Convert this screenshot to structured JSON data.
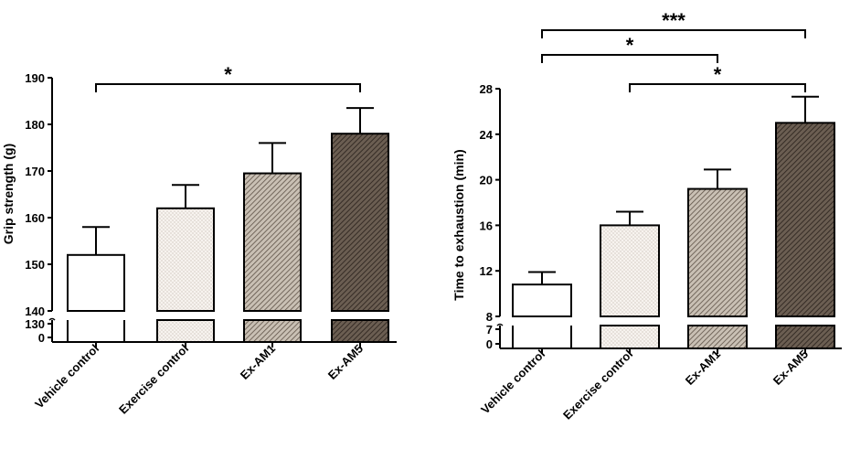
{
  "chart_data": [
    {
      "type": "bar",
      "ylabel": "Grip strength (g)",
      "xlabel": "",
      "categories": [
        "Vehicle control",
        "Exercise control",
        "Ex-AM1",
        "Ex-AM5"
      ],
      "values": [
        152,
        162,
        169.5,
        178
      ],
      "errors": [
        6,
        5,
        6.5,
        5.5
      ],
      "ylim": [
        140,
        190
      ],
      "yticks": [
        "140",
        "150",
        "160",
        "170",
        "180",
        "190"
      ],
      "broken_axis_ticks": [
        "130",
        "0"
      ],
      "significance": [
        {
          "from": "Vehicle control",
          "to": "Ex-AM5",
          "label": "*"
        }
      ],
      "fills": [
        "white",
        "light-dots",
        "medium-hatch",
        "dark-hatch"
      ]
    },
    {
      "type": "bar",
      "ylabel": "Time to exhaustion (min)",
      "xlabel": "",
      "categories": [
        "Vehicle control",
        "Exercise control",
        "Ex-AM1",
        "Ex-AM5"
      ],
      "values": [
        10.8,
        16,
        19.2,
        25
      ],
      "errors": [
        1.1,
        1.2,
        1.7,
        2.3
      ],
      "ylim": [
        8,
        28
      ],
      "yticks": [
        "8",
        "12",
        "16",
        "20",
        "24",
        "28"
      ],
      "broken_axis_ticks": [
        "7",
        "0"
      ],
      "significance": [
        {
          "from": "Vehicle control",
          "to": "Ex-AM5",
          "label": "***"
        },
        {
          "from": "Vehicle control",
          "to": "Ex-AM1",
          "label": "*"
        },
        {
          "from": "Exercise control",
          "to": "Ex-AM5",
          "label": "*"
        }
      ],
      "fills": [
        "white",
        "light-dots",
        "medium-hatch",
        "dark-hatch"
      ]
    }
  ]
}
